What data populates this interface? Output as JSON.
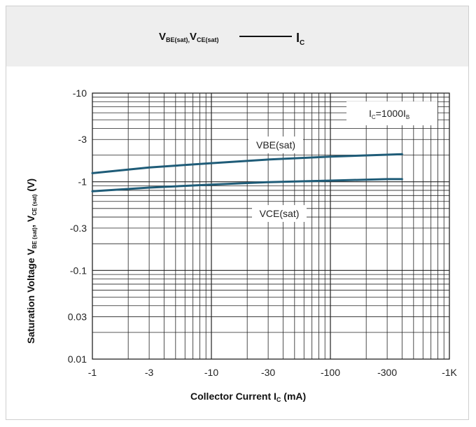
{
  "header": {
    "left_v1": "V",
    "left_v1_sub": "BE(sat),",
    "left_v2": "V",
    "left_v2_sub": "CE(sat)",
    "right_i": "I",
    "right_i_sub": "C"
  },
  "chart_data": {
    "type": "line",
    "x_scale": "log",
    "y_scale": "log",
    "xlim": [
      1,
      1000
    ],
    "ylim": [
      0.01,
      10
    ],
    "grid": true,
    "x_ticks": [
      {
        "value": 1,
        "label": "-1"
      },
      {
        "value": 3,
        "label": "-3"
      },
      {
        "value": 10,
        "label": "-10"
      },
      {
        "value": 30,
        "label": "-30"
      },
      {
        "value": 100,
        "label": "-100"
      },
      {
        "value": 300,
        "label": "-300"
      },
      {
        "value": 1000,
        "label": "-1K"
      }
    ],
    "y_ticks": [
      {
        "value": 10,
        "label": "-10"
      },
      {
        "value": 3,
        "label": "-3"
      },
      {
        "value": 1,
        "label": "-1"
      },
      {
        "value": 0.3,
        "label": "-0.3"
      },
      {
        "value": 0.1,
        "label": "-0.1"
      },
      {
        "value": 0.03,
        "label": "0.03"
      },
      {
        "value": 0.01,
        "label": "0.01"
      }
    ],
    "xlabel_main": "Collector Current  I",
    "xlabel_sub": "C",
    "xlabel_unit": " (mA)",
    "ylabel_main": "Saturation Voltage V",
    "ylabel_sub1": "BE (sat)",
    "ylabel_mid": ", V",
    "ylabel_sub2": "CE (sat)",
    "ylabel_unit": " (V)",
    "condition": {
      "pre": "I",
      "sub1": "C",
      "mid": "=1000I",
      "sub2": "B"
    },
    "series": [
      {
        "name": "VBE(sat)",
        "color": "#1f5c78",
        "x": [
          1,
          3,
          10,
          30,
          100,
          300,
          400
        ],
        "y": [
          1.25,
          1.45,
          1.62,
          1.78,
          1.92,
          2.02,
          2.05
        ]
      },
      {
        "name": "VCE(sat)",
        "color": "#1f5c78",
        "x": [
          1,
          3,
          10,
          30,
          100,
          300,
          400
        ],
        "y": [
          0.78,
          0.86,
          0.93,
          0.99,
          1.03,
          1.07,
          1.07
        ]
      }
    ]
  }
}
